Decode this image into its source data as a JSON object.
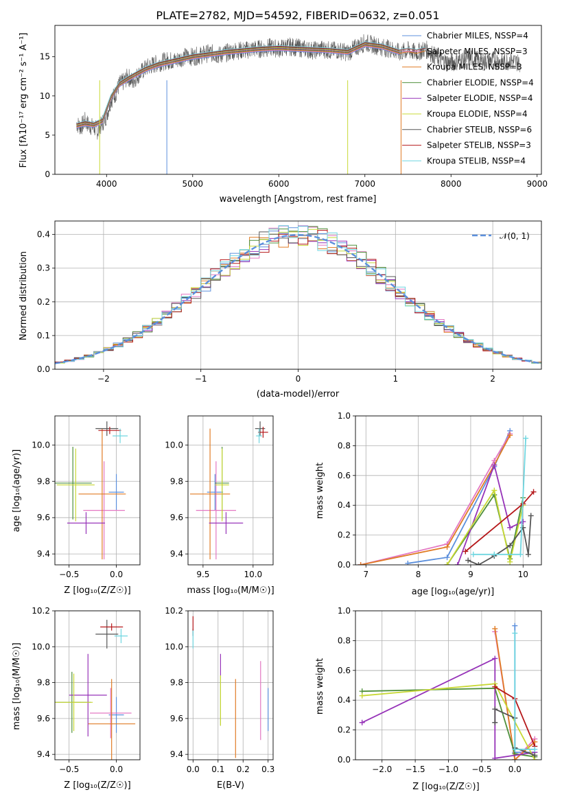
{
  "figure": {
    "title": "PLATE=2782, MJD=54592, FIBERID=0632, z=0.051"
  },
  "colors": {
    "chabrier_miles": "#5b8fdc",
    "salpeter_miles": "#e377c2",
    "kroupa_miles": "#e07b24",
    "chabrier_elodie": "#4e8f3a",
    "salpeter_elodie": "#9632b8",
    "kroupa_elodie": "#c8d834",
    "chabrier_stelib": "#555555",
    "salpeter_stelib": "#b5171a",
    "kroupa_stelib": "#6fd6e0",
    "normal_curve": "#5b8fdc"
  },
  "chart_data": [
    {
      "id": "spectrum",
      "type": "line",
      "xlabel": "wavelength [Angstrom, rest frame]",
      "ylabel": "Flux [fλ10⁻¹⁷ erg cm⁻² s⁻¹ A⁻¹]",
      "xlim": [
        3400,
        9050
      ],
      "ylim": [
        0,
        19
      ],
      "xticks": [
        "4000",
        "5000",
        "6000",
        "7000",
        "8000",
        "9000"
      ],
      "yticks": [
        "0",
        "5",
        "10",
        "15"
      ],
      "grid": false,
      "legend_position": "top-right",
      "observed": {
        "x": [
          3650,
          3700,
          3750,
          3800,
          3850,
          3900,
          3950,
          4000,
          4050,
          4100,
          4150,
          4200,
          4250,
          4300,
          4350,
          4400,
          4450,
          4500,
          4600,
          4700,
          4800,
          4900,
          5000,
          5100,
          5200,
          5300,
          5400,
          5500,
          5600,
          5700,
          5800,
          5900,
          6000,
          6100,
          6200,
          6300,
          6400,
          6500,
          6600,
          6700,
          6800,
          6900,
          7000,
          7100,
          7200,
          7300,
          7400,
          7500,
          7600,
          7700,
          7800,
          7900,
          8000,
          8100,
          8200,
          8300,
          8400,
          8500,
          8600,
          8700,
          8800
        ],
        "y": [
          6.5,
          6.0,
          6.8,
          6.2,
          6.0,
          5.5,
          6.5,
          7.5,
          9.5,
          10.2,
          11.5,
          11.8,
          12.5,
          11.8,
          12.5,
          13.0,
          13.5,
          13.8,
          14.2,
          14.5,
          14.5,
          15.0,
          15.0,
          15.2,
          15.5,
          15.2,
          15.5,
          15.8,
          15.8,
          16.0,
          16.0,
          16.2,
          16.0,
          16.3,
          16.2,
          16.0,
          15.8,
          16.0,
          15.8,
          15.8,
          15.5,
          16.2,
          16.8,
          16.5,
          16.2,
          16.0,
          15.5,
          15.8,
          15.5,
          16.0,
          15.2,
          14.5,
          14.2,
          14.5,
          14.8,
          14.6,
          14.4,
          14.6,
          14.3,
          14.5,
          14.2
        ]
      },
      "model": {
        "x": [
          3650,
          3750,
          3850,
          3950,
          4050,
          4150,
          4250,
          4350,
          4450,
          4600,
          4800,
          5000,
          5200,
          5400,
          5600,
          5800,
          6000,
          6200,
          6400,
          6600,
          6800,
          7000,
          7200,
          7400,
          7500,
          7600,
          7700
        ],
        "y": [
          6.2,
          6.5,
          6.3,
          6.8,
          9.8,
          11.5,
          12.2,
          12.8,
          13.4,
          14.0,
          14.5,
          15.0,
          15.3,
          15.6,
          15.8,
          16.0,
          16.1,
          16.0,
          15.9,
          15.8,
          15.6,
          16.6,
          16.3,
          15.6,
          15.8,
          15.6,
          15.9
        ]
      },
      "legend": [
        "Chabrier MILES, NSSP=4",
        "Salpeter MILES, NSSP=3",
        "Kroupa MILES, NSSP=3",
        "Chabrier ELODIE, NSSP=4",
        "Salpeter ELODIE, NSSP=4",
        "Kroupa ELODIE, NSSP=4",
        "Chabrier STELIB, NSSP=6",
        "Salpeter STELIB, NSSP=3",
        "Kroupa STELIB, NSSP=4"
      ]
    },
    {
      "id": "residuals",
      "type": "histogram",
      "xlabel": "(data-model)/error",
      "ylabel": "Normed distribution",
      "xlim": [
        -2.5,
        2.5
      ],
      "ylim": [
        0,
        0.44
      ],
      "xticks": [
        "−2",
        "−1",
        "0",
        "1",
        "2"
      ],
      "yticks": [
        "0.0",
        "0.1",
        "0.2",
        "0.3",
        "0.4"
      ],
      "grid": true,
      "legend_position": "top-right",
      "legend": "𝒩(0, 1)",
      "bin_edges_start": -2.5,
      "bin_width": 0.1
    },
    {
      "id": "age_vs_Z",
      "type": "errorbar",
      "xlabel": "Z [log₁₀(Z/Z☉)]",
      "ylabel": "age  [log₁₀(age/yr)]",
      "xlim": [
        -0.65,
        0.25
      ],
      "ylim": [
        9.34,
        10.16
      ],
      "xticks": [
        "−0.5",
        "0.0"
      ],
      "yticks": [
        "9.4",
        "9.6",
        "9.8",
        "10.0"
      ],
      "grid": true,
      "points": [
        {
          "series": "chabrier_miles",
          "x": 0.0,
          "y": 9.74,
          "xerr": 0.08,
          "yerr": 0.1
        },
        {
          "series": "salpeter_miles",
          "x": -0.13,
          "y": 9.64,
          "xerr": 0.22,
          "yerr": 0.27
        },
        {
          "series": "kroupa_miles",
          "x": -0.15,
          "y": 9.73,
          "xerr": 0.25,
          "yerr": 0.36
        },
        {
          "series": "chabrier_elodie",
          "x": -0.46,
          "y": 9.79,
          "xerr": 0.2,
          "yerr": 0.2
        },
        {
          "series": "salpeter_elodie",
          "x": -0.32,
          "y": 9.57,
          "xerr": 0.2,
          "yerr": 0.06
        },
        {
          "series": "kroupa_elodie",
          "x": -0.43,
          "y": 9.78,
          "xerr": 0.2,
          "yerr": 0.2
        },
        {
          "series": "chabrier_stelib",
          "x": -0.1,
          "y": 10.09,
          "xerr": 0.12,
          "yerr": 0.04
        },
        {
          "series": "salpeter_stelib",
          "x": -0.07,
          "y": 10.08,
          "xerr": 0.12,
          "yerr": 0.02
        },
        {
          "series": "kroupa_stelib",
          "x": 0.04,
          "y": 10.05,
          "xerr": 0.08,
          "yerr": 0.04
        }
      ]
    },
    {
      "id": "age_vs_mass",
      "type": "errorbar",
      "xlabel": "mass [log₁₀(M/M☉)]",
      "ylabel": "",
      "xlim": [
        9.35,
        10.2
      ],
      "ylim": [
        9.34,
        10.16
      ],
      "xticks": [
        "9.5",
        "10.0"
      ],
      "yticks": [
        "9.4",
        "9.6",
        "9.8",
        "10.0"
      ],
      "grid": true,
      "points": [
        {
          "series": "chabrier_miles",
          "x": 9.62,
          "y": 9.74,
          "xerr": 0.08,
          "yerr": 0.1
        },
        {
          "series": "salpeter_miles",
          "x": 9.63,
          "y": 9.64,
          "xerr": 0.2,
          "yerr": 0.27
        },
        {
          "series": "kroupa_miles",
          "x": 9.57,
          "y": 9.73,
          "xerr": 0.2,
          "yerr": 0.36
        },
        {
          "series": "chabrier_elodie",
          "x": 9.69,
          "y": 9.79,
          "xerr": 0.07,
          "yerr": 0.2
        },
        {
          "series": "salpeter_elodie",
          "x": 9.73,
          "y": 9.57,
          "xerr": 0.17,
          "yerr": 0.06
        },
        {
          "series": "kroupa_elodie",
          "x": 9.69,
          "y": 9.78,
          "xerr": 0.07,
          "yerr": 0.2
        },
        {
          "series": "chabrier_stelib",
          "x": 10.07,
          "y": 10.09,
          "xerr": 0.05,
          "yerr": 0.04
        },
        {
          "series": "salpeter_stelib",
          "x": 10.1,
          "y": 10.07,
          "xerr": 0.05,
          "yerr": 0.03
        },
        {
          "series": "kroupa_stelib",
          "x": 10.06,
          "y": 10.05,
          "xerr": 0.03,
          "yerr": 0.04
        }
      ]
    },
    {
      "id": "weight_vs_age",
      "type": "line",
      "xlabel": "age  [log₁₀(age/yr)]",
      "ylabel": "mass weight",
      "xlim": [
        6.8,
        10.35
      ],
      "ylim": [
        0,
        1.0
      ],
      "xticks": [
        "7",
        "8",
        "9",
        "10"
      ],
      "yticks": [
        "0.0",
        "0.2",
        "0.4",
        "0.6",
        "0.8",
        "1.0"
      ],
      "grid": true,
      "series": [
        {
          "key": "chabrier_miles",
          "x": [
            7.8,
            8.55,
            9.45,
            9.75
          ],
          "y": [
            0.01,
            0.05,
            0.66,
            0.9
          ]
        },
        {
          "key": "salpeter_miles",
          "x": [
            6.9,
            8.55,
            9.45,
            9.75
          ],
          "y": [
            0.0,
            0.14,
            0.7,
            0.88
          ]
        },
        {
          "key": "kroupa_miles",
          "x": [
            6.9,
            8.55,
            9.45,
            9.75
          ],
          "y": [
            0.0,
            0.12,
            0.67,
            0.87
          ]
        },
        {
          "key": "chabrier_elodie",
          "x": [
            8.55,
            9.45,
            9.75,
            10.0
          ],
          "y": [
            0.0,
            0.47,
            0.04,
            0.45
          ]
        },
        {
          "key": "salpeter_elodie",
          "x": [
            8.75,
            9.45,
            9.75,
            10.0
          ],
          "y": [
            0.0,
            0.67,
            0.25,
            0.29
          ]
        },
        {
          "key": "kroupa_elodie",
          "x": [
            8.55,
            9.45,
            9.75,
            10.0
          ],
          "y": [
            0.0,
            0.5,
            0.02,
            0.4
          ]
        },
        {
          "key": "chabrier_stelib",
          "x": [
            8.95,
            9.15,
            9.45,
            9.75,
            10.0,
            10.1,
            10.15
          ],
          "y": [
            0.03,
            0.0,
            0.06,
            0.13,
            0.25,
            0.07,
            0.33
          ]
        },
        {
          "key": "salpeter_stelib",
          "x": [
            8.9,
            10.0,
            10.2
          ],
          "y": [
            0.09,
            0.41,
            0.49
          ]
        },
        {
          "key": "kroupa_stelib",
          "x": [
            9.05,
            9.45,
            9.95,
            10.05
          ],
          "y": [
            0.07,
            0.07,
            0.07,
            0.85
          ]
        }
      ]
    },
    {
      "id": "mass_vs_Z",
      "type": "errorbar",
      "xlabel": "Z [log₁₀(Z/Z☉)]",
      "ylabel": "mass [log₁₀(M/M☉)]",
      "xlim": [
        -0.65,
        0.25
      ],
      "ylim": [
        9.37,
        10.2
      ],
      "xticks": [
        "−0.5",
        "0.0"
      ],
      "yticks": [
        "9.4",
        "9.6",
        "9.8",
        "10.0",
        "10.2"
      ],
      "grid": true,
      "points": [
        {
          "series": "chabrier_miles",
          "x": 0.0,
          "y": 9.62,
          "xerr": 0.08,
          "yerr": 0.1
        },
        {
          "series": "salpeter_miles",
          "x": -0.06,
          "y": 9.63,
          "xerr": 0.22,
          "yerr": 0.14
        },
        {
          "series": "kroupa_miles",
          "x": -0.05,
          "y": 9.57,
          "xerr": 0.25,
          "yerr": 0.25
        },
        {
          "series": "chabrier_elodie",
          "x": -0.47,
          "y": 9.69,
          "xerr": 0.2,
          "yerr": 0.17
        },
        {
          "series": "salpeter_elodie",
          "x": -0.3,
          "y": 9.73,
          "xerr": 0.2,
          "yerr": 0.23
        },
        {
          "series": "kroupa_elodie",
          "x": -0.45,
          "y": 9.69,
          "xerr": 0.2,
          "yerr": 0.16
        },
        {
          "series": "chabrier_stelib",
          "x": -0.1,
          "y": 10.07,
          "xerr": 0.12,
          "yerr": 0.08
        },
        {
          "series": "salpeter_stelib",
          "x": -0.05,
          "y": 10.11,
          "xerr": 0.12,
          "yerr": 0.02
        },
        {
          "series": "kroupa_stelib",
          "x": 0.05,
          "y": 10.06,
          "xerr": 0.07,
          "yerr": 0.04
        }
      ]
    },
    {
      "id": "mass_vs_ebv",
      "type": "errorbar",
      "xlabel": "E(B-V)",
      "ylabel": "",
      "xlim": [
        -0.02,
        0.32
      ],
      "ylim": [
        9.37,
        10.2
      ],
      "xticks": [
        "0.0",
        "0.1",
        "0.2",
        "0.3"
      ],
      "yticks": [
        "9.4",
        "9.6",
        "9.8",
        "10.0",
        "10.2"
      ],
      "grid": true,
      "points": [
        {
          "series": "chabrier_miles",
          "x": 0.3,
          "y": 9.65,
          "xerr": 0,
          "yerr": 0.12
        },
        {
          "series": "salpeter_miles",
          "x": 0.27,
          "y": 9.7,
          "xerr": 0,
          "yerr": 0.22
        },
        {
          "series": "kroupa_miles",
          "x": 0.17,
          "y": 9.6,
          "xerr": 0,
          "yerr": 0.22
        },
        {
          "series": "chabrier_elodie",
          "x": 0.11,
          "y": 9.7,
          "xerr": 0,
          "yerr": 0.14
        },
        {
          "series": "salpeter_elodie",
          "x": 0.11,
          "y": 9.9,
          "xerr": 0,
          "yerr": 0.06
        },
        {
          "series": "kroupa_elodie",
          "x": 0.11,
          "y": 9.7,
          "xerr": 0,
          "yerr": 0.14
        },
        {
          "series": "chabrier_stelib",
          "x": 0.0,
          "y": 10.08,
          "xerr": 0,
          "yerr": 0.02
        },
        {
          "series": "salpeter_stelib",
          "x": 0.0,
          "y": 10.13,
          "xerr": 0,
          "yerr": 0.04
        },
        {
          "series": "kroupa_stelib",
          "x": 0.0,
          "y": 10.04,
          "xerr": 0,
          "yerr": 0.05
        }
      ]
    },
    {
      "id": "weight_vs_Z",
      "type": "line",
      "xlabel": "Z [log₁₀(Z/Z☉)]",
      "ylabel": "mass weight",
      "xlim": [
        -2.4,
        0.4
      ],
      "ylim": [
        0,
        1.0
      ],
      "xticks": [
        "−2.0",
        "−1.5",
        "−1.0",
        "−0.5",
        "0.0"
      ],
      "yticks": [
        "0.0",
        "0.2",
        "0.4",
        "0.6",
        "0.8",
        "1.0"
      ],
      "grid": true,
      "series": [
        {
          "key": "chabrier_miles",
          "x": [
            0.0,
            0.0,
            0.3
          ],
          "y": [
            0.9,
            0.05,
            0.05
          ]
        },
        {
          "key": "salpeter_miles",
          "x": [
            -0.3,
            0.0,
            0.3
          ],
          "y": [
            0.86,
            0.0,
            0.14
          ]
        },
        {
          "key": "kroupa_miles",
          "x": [
            -0.3,
            0.0,
            0.3
          ],
          "y": [
            0.88,
            0.0,
            0.12
          ]
        },
        {
          "key": "chabrier_elodie",
          "x": [
            -2.3,
            -0.3,
            0.0,
            0.3
          ],
          "y": [
            0.46,
            0.48,
            0.04,
            0.02
          ]
        },
        {
          "key": "salpeter_elodie",
          "x": [
            -2.3,
            -0.3,
            -0.3,
            0.3
          ],
          "y": [
            0.25,
            0.68,
            0.01,
            0.05
          ]
        },
        {
          "key": "kroupa_elodie",
          "x": [
            -2.3,
            -0.3,
            0.3
          ],
          "y": [
            0.43,
            0.51,
            0.0
          ]
        },
        {
          "key": "chabrier_stelib",
          "x": [
            -0.3,
            -0.3,
            0.0,
            0.0,
            0.3
          ],
          "y": [
            0.25,
            0.34,
            0.28,
            0.08,
            0.03
          ]
        },
        {
          "key": "salpeter_stelib",
          "x": [
            -0.3,
            0.0,
            0.3
          ],
          "y": [
            0.49,
            0.41,
            0.09
          ]
        },
        {
          "key": "kroupa_stelib",
          "x": [
            0.0,
            0.0,
            0.3
          ],
          "y": [
            0.85,
            0.07,
            0.07
          ]
        }
      ]
    }
  ]
}
